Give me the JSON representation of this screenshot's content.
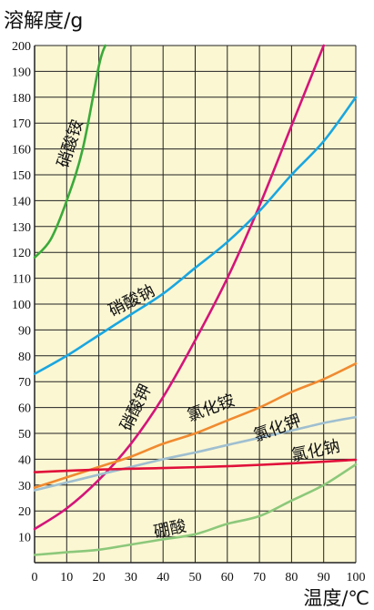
{
  "chart_data": {
    "type": "line",
    "ylabel": "溶解度/g",
    "xlabel": "温度/℃",
    "xlim": [
      0,
      100
    ],
    "ylim": [
      0,
      200
    ],
    "x_ticks": [
      "0",
      "10",
      "20",
      "30",
      "40",
      "50",
      "60",
      "70",
      "80",
      "90",
      "100"
    ],
    "y_ticks": [
      "10",
      "20",
      "30",
      "40",
      "50",
      "60",
      "70",
      "80",
      "90",
      "100",
      "110",
      "120",
      "130",
      "140",
      "150",
      "160",
      "170",
      "180",
      "190",
      "200"
    ],
    "grid": true,
    "series": [
      {
        "name": "硝酸铵",
        "color": "#3aaa3a",
        "x": [
          0,
          5,
          10,
          15,
          20,
          22
        ],
        "y": [
          118,
          125,
          140,
          160,
          192,
          200
        ]
      },
      {
        "name": "硝酸钾",
        "color": "#d4147a",
        "x": [
          0,
          10,
          20,
          30,
          40,
          50,
          60,
          70,
          80,
          90
        ],
        "y": [
          13,
          21,
          32,
          46,
          64,
          86,
          110,
          138,
          169,
          200
        ]
      },
      {
        "name": "硝酸钠",
        "color": "#1aa6e0",
        "x": [
          0,
          10,
          20,
          30,
          40,
          50,
          60,
          70,
          80,
          90,
          100
        ],
        "y": [
          73,
          80,
          88,
          96,
          104,
          114,
          124,
          136,
          150,
          163,
          180
        ]
      },
      {
        "name": "氯化铵",
        "color": "#f08a30",
        "x": [
          0,
          10,
          20,
          30,
          40,
          50,
          60,
          70,
          80,
          90,
          100
        ],
        "y": [
          29,
          33,
          37,
          41,
          46,
          50,
          55,
          60,
          66,
          71,
          77
        ]
      },
      {
        "name": "氯化钾",
        "color": "#9fbfd0",
        "x": [
          0,
          10,
          20,
          30,
          40,
          50,
          60,
          70,
          80,
          90,
          100
        ],
        "y": [
          28,
          31,
          34,
          37,
          40,
          42.6,
          45.5,
          48.3,
          51.1,
          54,
          56.3
        ]
      },
      {
        "name": "氯化钠",
        "color": "#e0103a",
        "x": [
          0,
          20,
          40,
          60,
          80,
          100
        ],
        "y": [
          35,
          36,
          36.6,
          37.3,
          38.4,
          39.8
        ]
      },
      {
        "name": "硼酸",
        "color": "#8cc87a",
        "x": [
          0,
          10,
          20,
          30,
          40,
          50,
          60,
          70,
          80,
          90,
          100
        ],
        "y": [
          3,
          4,
          5,
          7,
          9,
          11,
          15,
          18,
          24,
          30,
          38
        ]
      }
    ]
  },
  "labels": [
    {
      "text": "硝酸铵",
      "series": 0
    },
    {
      "text": "硝酸钠",
      "series": 2
    },
    {
      "text": "硝酸钾",
      "series": 1
    },
    {
      "text": "氯化铵",
      "series": 3
    },
    {
      "text": "氯化钾",
      "series": 4
    },
    {
      "text": "氯化钠",
      "series": 5
    },
    {
      "text": "硼酸",
      "series": 6
    }
  ]
}
